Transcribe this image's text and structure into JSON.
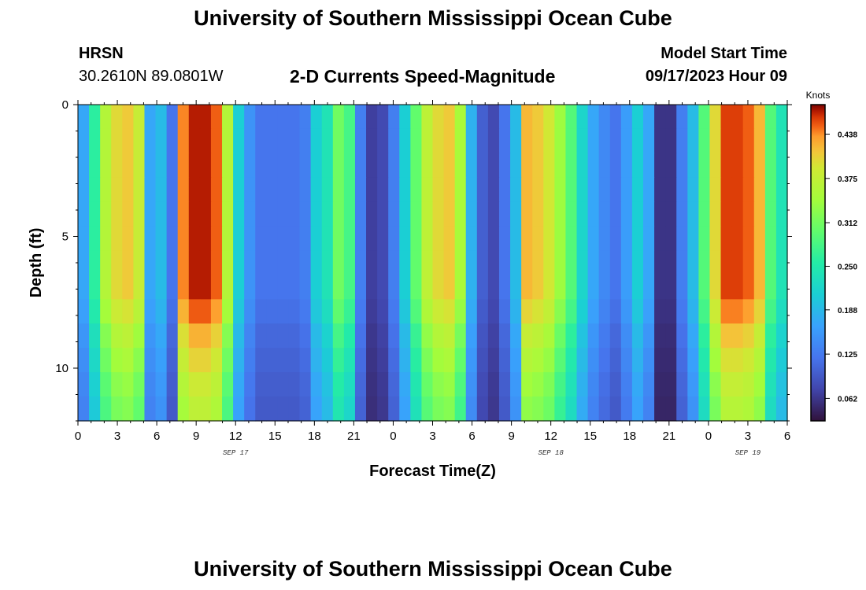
{
  "header": {
    "title": "University of Southern Mississippi Ocean Cube",
    "station_name": "HRSN",
    "station_coords": "30.2610N  89.0801W",
    "subtitle": "2-D Currents Speed-Magnitude",
    "model_start_label": "Model Start Time",
    "model_start_value": "09/17/2023 Hour 09"
  },
  "footer": {
    "title": "University of Southern Mississippi Ocean Cube"
  },
  "chart_data": {
    "type": "heatmap",
    "title": "2-D Currents Speed-Magnitude",
    "xlabel": "Forecast Time(Z)",
    "ylabel": "Depth (ft)",
    "x_range_hours": [
      0,
      54
    ],
    "y_range_ft": [
      0,
      12
    ],
    "x_ticks": [
      {
        "hour": 0,
        "label": "0"
      },
      {
        "hour": 3,
        "label": "3"
      },
      {
        "hour": 6,
        "label": "6"
      },
      {
        "hour": 9,
        "label": "9"
      },
      {
        "hour": 12,
        "label": "12"
      },
      {
        "hour": 15,
        "label": "15"
      },
      {
        "hour": 18,
        "label": "18"
      },
      {
        "hour": 21,
        "label": "21"
      },
      {
        "hour": 24,
        "label": "0"
      },
      {
        "hour": 27,
        "label": "3"
      },
      {
        "hour": 30,
        "label": "6"
      },
      {
        "hour": 33,
        "label": "9"
      },
      {
        "hour": 36,
        "label": "12"
      },
      {
        "hour": 39,
        "label": "15"
      },
      {
        "hour": 42,
        "label": "18"
      },
      {
        "hour": 45,
        "label": "21"
      },
      {
        "hour": 48,
        "label": "0"
      },
      {
        "hour": 51,
        "label": "3"
      },
      {
        "hour": 54,
        "label": "6"
      }
    ],
    "date_labels": [
      {
        "hour": 12,
        "label": "SEP 17"
      },
      {
        "hour": 36,
        "label": "SEP 18"
      },
      {
        "hour": 51,
        "label": "SEP 19"
      }
    ],
    "y_ticks": [
      {
        "depth": 0,
        "label": "0"
      },
      {
        "depth": 5,
        "label": "5"
      },
      {
        "depth": 10,
        "label": "10"
      }
    ],
    "colorbar": {
      "title": "Knots",
      "min": 0.03,
      "max": 0.48,
      "ticks": [
        {
          "value": 0.062,
          "label": "0.062"
        },
        {
          "value": 0.125,
          "label": "0.125"
        },
        {
          "value": 0.188,
          "label": "0.188"
        },
        {
          "value": 0.25,
          "label": "0.250"
        },
        {
          "value": 0.312,
          "label": "0.312"
        },
        {
          "value": 0.375,
          "label": "0.375"
        },
        {
          "value": 0.438,
          "label": "0.438"
        }
      ]
    },
    "surface_speed_knots": [
      0.17,
      0.26,
      0.36,
      0.4,
      0.41,
      0.38,
      0.17,
      0.19,
      0.12,
      0.44,
      0.47,
      0.47,
      0.45,
      0.36,
      0.21,
      0.15,
      0.12,
      0.12,
      0.12,
      0.12,
      0.13,
      0.21,
      0.24,
      0.31,
      0.28,
      0.13,
      0.07,
      0.08,
      0.13,
      0.21,
      0.3,
      0.37,
      0.4,
      0.41,
      0.35,
      0.18,
      0.1,
      0.08,
      0.12,
      0.19,
      0.42,
      0.41,
      0.39,
      0.34,
      0.29,
      0.22,
      0.17,
      0.14,
      0.12,
      0.16,
      0.21,
      0.17,
      0.06,
      0.06,
      0.13,
      0.19,
      0.29,
      0.4,
      0.46,
      0.46,
      0.45,
      0.42,
      0.29,
      0.24
    ],
    "depth_profile_factor": [
      1.0,
      1.0,
      1.0,
      1.0,
      1.0,
      1.0,
      1.0,
      1.0,
      0.96,
      0.9,
      0.86,
      0.82,
      0.79
    ]
  }
}
